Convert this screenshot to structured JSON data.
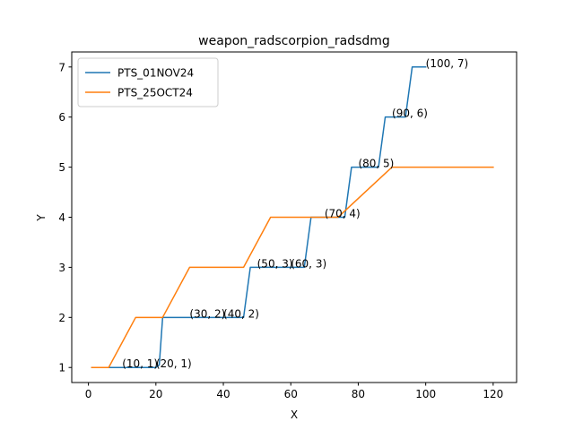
{
  "chart_data": {
    "type": "line",
    "title": "weapon_radscorpion_radsdmg",
    "xlabel": "X",
    "ylabel": "Y",
    "xlim": [
      -4.95,
      126.95
    ],
    "ylim": [
      0.7,
      7.3
    ],
    "xticks": [
      0,
      20,
      40,
      60,
      80,
      100,
      120
    ],
    "yticks": [
      1,
      2,
      3,
      4,
      5,
      6,
      7
    ],
    "grid": false,
    "legend_position": "top-left",
    "series": [
      {
        "name": "PTS_01NOV24",
        "color": "#1f77b4",
        "x": [
          1,
          10,
          20,
          21,
          22,
          30,
          40,
          46,
          48,
          50,
          60,
          64,
          66,
          70,
          76,
          78,
          80,
          86,
          88,
          90,
          94,
          96,
          100
        ],
        "y": [
          1,
          1,
          1,
          1.05,
          2,
          2,
          2,
          2,
          3,
          3,
          3,
          3,
          4,
          4,
          4,
          5,
          5,
          5,
          6,
          6,
          6,
          7,
          7
        ]
      },
      {
        "name": "PTS_25OCT24",
        "color": "#ff7f0e",
        "x": [
          1,
          6,
          14,
          22,
          30,
          46,
          54,
          74,
          90,
          120
        ],
        "y": [
          1,
          1,
          2,
          2,
          3,
          3,
          4,
          4,
          5,
          5
        ]
      }
    ],
    "annotations": [
      {
        "text": "(10, 1)",
        "x": 10,
        "y": 1
      },
      {
        "text": "(20, 1)",
        "x": 20,
        "y": 1
      },
      {
        "text": "(30, 2)",
        "x": 30,
        "y": 2
      },
      {
        "text": "(40, 2)",
        "x": 40,
        "y": 2
      },
      {
        "text": "(50, 3)",
        "x": 50,
        "y": 3
      },
      {
        "text": "(60, 3)",
        "x": 60,
        "y": 3
      },
      {
        "text": "(70, 4)",
        "x": 70,
        "y": 4
      },
      {
        "text": "(80, 5)",
        "x": 80,
        "y": 5
      },
      {
        "text": "(90, 6)",
        "x": 90,
        "y": 6
      },
      {
        "text": "(100, 7)",
        "x": 100,
        "y": 7
      }
    ]
  }
}
